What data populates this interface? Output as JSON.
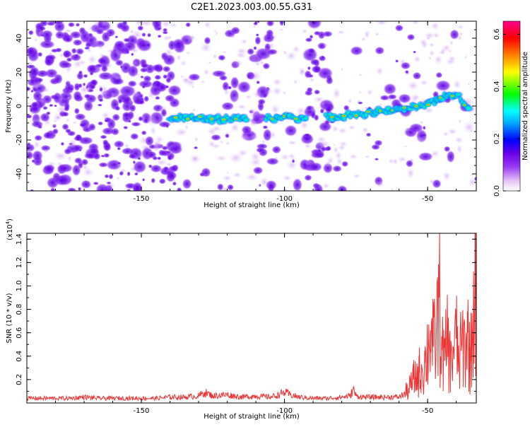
{
  "title": "C2E1.2023.003.00.55.G31",
  "chart_data": [
    {
      "type": "heatmap",
      "xlabel": "Height of straight line (km)",
      "ylabel": "Frequency (Hz)",
      "xlim": [
        -190,
        -33
      ],
      "ylim": [
        -50,
        50
      ],
      "x_ticks": [
        -150,
        -100,
        -50
      ],
      "y_ticks": [
        -40,
        -20,
        0,
        20,
        40
      ],
      "grid": false,
      "colorbar": {
        "label": "Normalized spectral amplitude",
        "range": [
          0.0,
          0.65
        ],
        "ticks": [
          0.0,
          0.2,
          0.4,
          0.6
        ],
        "colors": [
          "#ffffff",
          "#e6c3f7",
          "#9a3cf0",
          "#6a00e8",
          "#0000ff",
          "#00ffff",
          "#00ff00",
          "#ffff00",
          "#ff8000",
          "#ff0000",
          "#ff00a0"
        ]
      },
      "ridge": {
        "x": [
          -140,
          -130,
          -120,
          -110,
          -100,
          -90,
          -80,
          -70,
          -60,
          -50,
          -45,
          -40,
          -35
        ],
        "frequency": [
          -7,
          -7,
          -8,
          -7,
          -7,
          -7,
          -6,
          -4,
          -2,
          1,
          5,
          7,
          -3
        ]
      }
    },
    {
      "type": "line",
      "xlabel": "Height of straight line (km)",
      "ylabel": "SNR (10 * v/v)",
      "y_multiplier": "(x10",
      "y_multiplier_exp": "4",
      "y_multiplier_close": ")",
      "xlim": [
        -190,
        -33
      ],
      "ylim": [
        0,
        1.45
      ],
      "x_ticks": [
        -150,
        -100,
        -50
      ],
      "y_ticks": [
        0.2,
        0.4,
        0.6,
        0.8,
        1.0,
        1.2,
        1.4
      ],
      "series": [
        {
          "color": "#ee3333",
          "x": [
            -190,
            -185,
            -180,
            -175,
            -170,
            -165,
            -160,
            -155,
            -150,
            -145,
            -140,
            -135,
            -130,
            -128,
            -125,
            -120,
            -115,
            -110,
            -105,
            -102,
            -100,
            -98,
            -95,
            -90,
            -85,
            -80,
            -77,
            -76,
            -75,
            -72,
            -70,
            -65,
            -60,
            -58,
            -56,
            -55,
            -54,
            -53,
            -52,
            -51,
            -50,
            -49,
            -48,
            -47,
            -46,
            -45,
            -44,
            -43,
            -42,
            -41,
            -40,
            -39,
            -38,
            -37,
            -36,
            -35,
            -34,
            -33.5,
            -33
          ],
          "y": [
            0.04,
            0.04,
            0.04,
            0.04,
            0.05,
            0.04,
            0.04,
            0.04,
            0.04,
            0.04,
            0.05,
            0.05,
            0.06,
            0.09,
            0.06,
            0.07,
            0.05,
            0.06,
            0.05,
            0.07,
            0.09,
            0.07,
            0.05,
            0.04,
            0.04,
            0.05,
            0.06,
            0.12,
            0.06,
            0.05,
            0.05,
            0.05,
            0.05,
            0.08,
            0.14,
            0.2,
            0.22,
            0.26,
            0.3,
            0.34,
            0.45,
            0.62,
            0.48,
            0.55,
            0.9,
            0.45,
            0.36,
            0.58,
            0.3,
            0.48,
            0.55,
            0.33,
            0.5,
            0.48,
            0.6,
            0.36,
            0.84,
            1.1,
            1.44
          ]
        }
      ]
    }
  ]
}
